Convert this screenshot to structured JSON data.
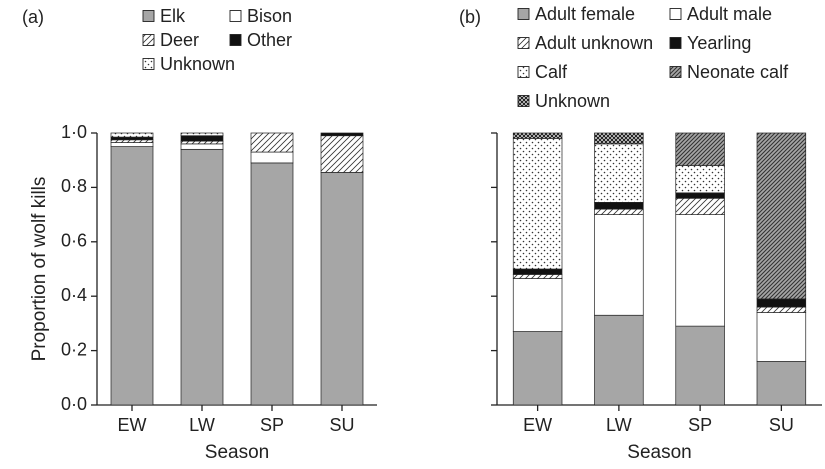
{
  "chart_data": [
    {
      "type": "bar",
      "stacked": true,
      "panel_label": "(a)",
      "x_label": "Season",
      "y_label": "Proportion of wolf kills",
      "categories": [
        "EW",
        "LW",
        "SP",
        "SU"
      ],
      "ylim": [
        0,
        1
      ],
      "yticks": [
        {
          "value": 0,
          "label": "0·0"
        },
        {
          "value": 0.2,
          "label": "0·2"
        },
        {
          "value": 0.4,
          "label": "0·4"
        },
        {
          "value": 0.6,
          "label": "0·6"
        },
        {
          "value": 0.8,
          "label": "0·8"
        },
        {
          "value": 1,
          "label": "1·0"
        }
      ],
      "series": [
        {
          "name": "Elk",
          "color": "#a6a6a6",
          "pattern": "none",
          "values": [
            0.95,
            0.94,
            0.89,
            0.855
          ]
        },
        {
          "name": "Bison",
          "color": "#ffffff",
          "pattern": "none",
          "values": [
            0.015,
            0.02,
            0.04,
            0
          ]
        },
        {
          "name": "Deer",
          "color": "#ffffff",
          "pattern": "hatch",
          "values": [
            0.01,
            0.01,
            0.07,
            0.135
          ]
        },
        {
          "name": "Other",
          "color": "#111111",
          "pattern": "none",
          "values": [
            0.01,
            0.02,
            0,
            0.01
          ]
        },
        {
          "name": "Unknown",
          "color": "#ffffff",
          "pattern": "dots",
          "values": [
            0.015,
            0.01,
            0,
            0
          ]
        }
      ]
    },
    {
      "type": "bar",
      "stacked": true,
      "panel_label": "(b)",
      "x_label": "Season",
      "categories": [
        "EW",
        "LW",
        "SP",
        "SU"
      ],
      "ylim": [
        0,
        1
      ],
      "yticks": [
        0,
        0.2,
        0.4,
        0.6,
        0.8,
        1
      ],
      "series": [
        {
          "name": "Adult female",
          "color": "#a6a6a6",
          "pattern": "none",
          "values": [
            0.27,
            0.33,
            0.29,
            0.16
          ]
        },
        {
          "name": "Adult male",
          "color": "#ffffff",
          "pattern": "none",
          "values": [
            0.195,
            0.37,
            0.41,
            0.18
          ]
        },
        {
          "name": "Adult unknown",
          "color": "#ffffff",
          "pattern": "hatch",
          "values": [
            0.015,
            0.02,
            0.06,
            0.02
          ]
        },
        {
          "name": "Yearling",
          "color": "#111111",
          "pattern": "none",
          "values": [
            0.02,
            0.025,
            0.02,
            0.03
          ]
        },
        {
          "name": "Calf",
          "color": "#ffffff",
          "pattern": "dots",
          "values": [
            0.48,
            0.215,
            0.1,
            0
          ]
        },
        {
          "name": "Neonate calf",
          "color": "#a6a6a6",
          "pattern": "dense-hatch",
          "values": [
            0,
            0,
            0.12,
            0.61
          ]
        },
        {
          "name": "Unknown",
          "color": "#ffffff",
          "pattern": "checker",
          "values": [
            0.02,
            0.04,
            0,
            0
          ]
        }
      ]
    }
  ]
}
